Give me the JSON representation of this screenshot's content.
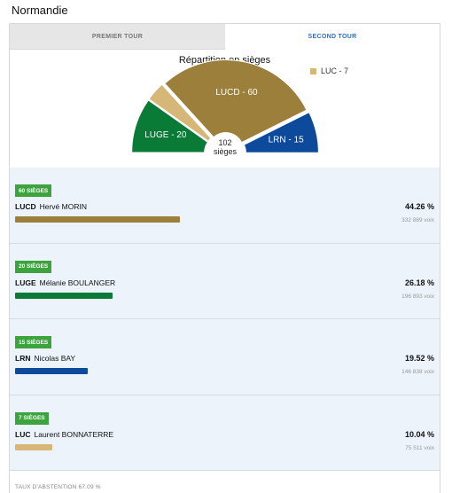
{
  "region": {
    "title": "Normandie"
  },
  "tabs": [
    {
      "label": "PREMIER TOUR",
      "active": false
    },
    {
      "label": "SECOND TOUR",
      "active": true
    }
  ],
  "seat_chart": {
    "title": "Répartition en sièges",
    "total_value": "102",
    "total_unit": "sièges",
    "segments": [
      {
        "label": "LUGE - 20",
        "seats": 20,
        "color": "#0a7a37"
      },
      {
        "label": "LUC - 7",
        "seats": 7,
        "color": "#d6b777"
      },
      {
        "label": "LUCD - 60",
        "seats": 60,
        "color": "#9b7f3b"
      },
      {
        "label": "LRN - 15",
        "seats": 15,
        "color": "#0d4a9c"
      }
    ],
    "legend": [
      {
        "label": "LUC - 7",
        "color": "#d6b777"
      }
    ]
  },
  "results": [
    {
      "badge": "60 SIÈGES",
      "party": "LUCD",
      "candidate": "Hervé MORIN",
      "percent": "44.26 %",
      "votes": "332 889 voix",
      "share": 44.26,
      "color": "#9b7f3b"
    },
    {
      "badge": "20 SIÈGES",
      "party": "LUGE",
      "candidate": "Mélanie BOULANGER",
      "percent": "26.18 %",
      "votes": "196 893 voix",
      "share": 26.18,
      "color": "#0a7a37"
    },
    {
      "badge": "15 SIÈGES",
      "party": "LRN",
      "candidate": "Nicolas BAY",
      "percent": "19.52 %",
      "votes": "146 838 voix",
      "share": 19.52,
      "color": "#0d4a9c"
    },
    {
      "badge": "7 SIÈGES",
      "party": "LUC",
      "candidate": "Laurent BONNATERRE",
      "percent": "10.04 %",
      "votes": "75 511 voix",
      "share": 10.04,
      "color": "#d6b777"
    }
  ],
  "abstention": "TAUX D'ABSTENTION 67.09 %"
}
